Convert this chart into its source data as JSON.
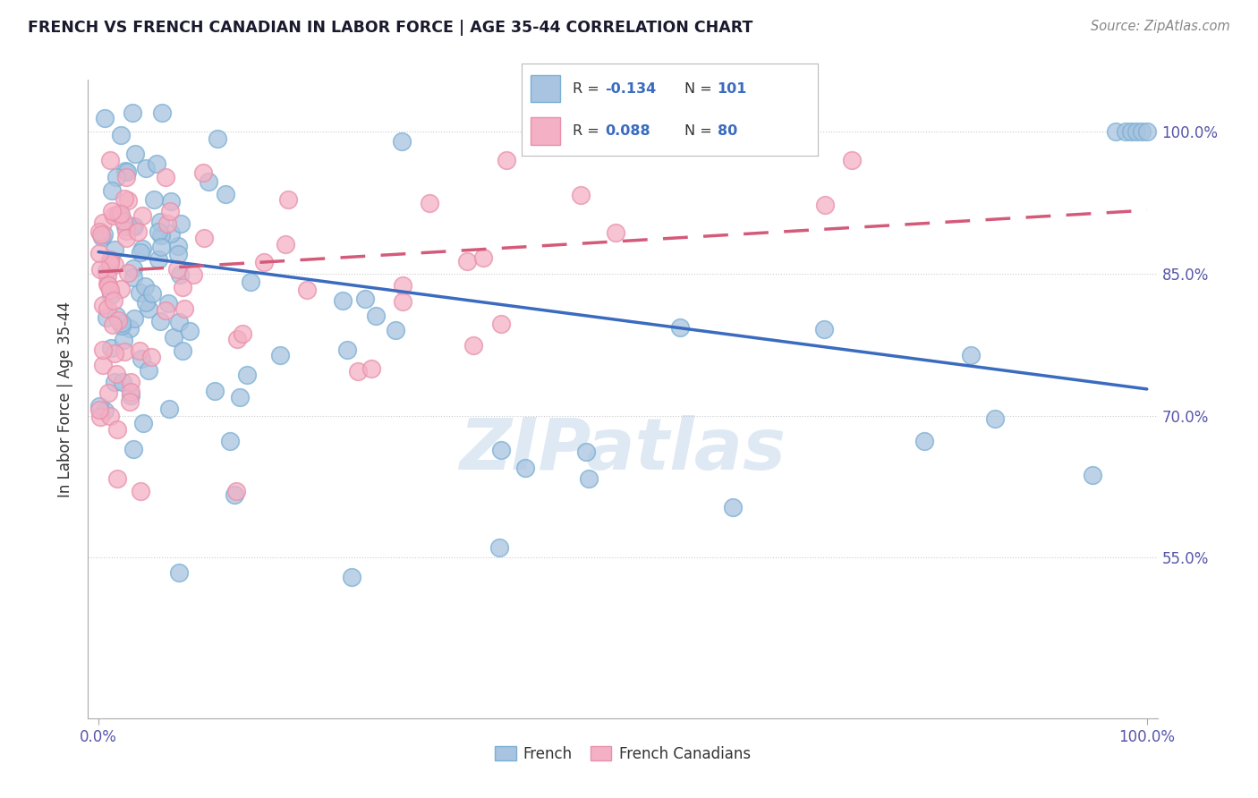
{
  "title": "FRENCH VS FRENCH CANADIAN IN LABOR FORCE | AGE 35-44 CORRELATION CHART",
  "source": "Source: ZipAtlas.com",
  "ylabel": "In Labor Force | Age 35-44",
  "ytick_labels": [
    "100.0%",
    "85.0%",
    "70.0%",
    "55.0%"
  ],
  "ytick_values": [
    1.0,
    0.85,
    0.7,
    0.55
  ],
  "french_R": -0.134,
  "french_N": 101,
  "french_canadian_R": 0.088,
  "french_canadian_N": 80,
  "french_color": "#a8c4e0",
  "french_edge_color": "#7aafd4",
  "french_line_color": "#3a6bbf",
  "french_canadian_color": "#f4b0c4",
  "french_canadian_edge_color": "#e890aa",
  "french_canadian_line_color": "#d45a7a",
  "legend_french": "French",
  "legend_french_canadian": "French Canadians",
  "watermark": "ZIPatlas",
  "bg_color": "#ffffff",
  "grid_color": "#cccccc",
  "title_color": "#1a1a2e",
  "axis_label_color": "#5555aa",
  "source_color": "#888888",
  "ylabel_color": "#333333",
  "ylim_min": 0.38,
  "ylim_max": 1.055
}
